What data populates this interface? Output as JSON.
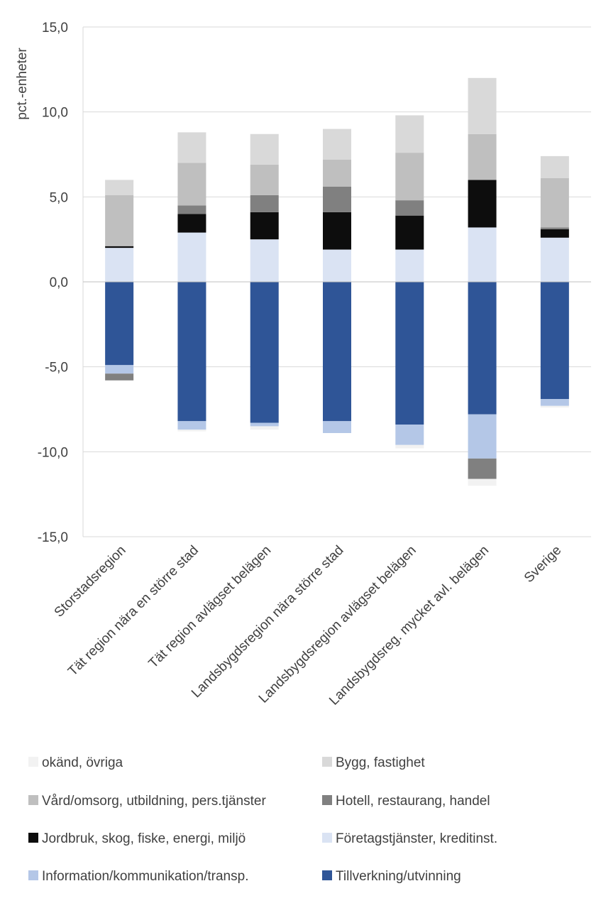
{
  "chart_data": {
    "type": "bar",
    "stacked": true,
    "title": "",
    "ylabel": "pct.-enheter",
    "xlabel": "",
    "ylim": [
      -15,
      15
    ],
    "yticks": [
      "15,0",
      "10,0",
      "5,0",
      "0,0",
      "-5,0",
      "-10,0",
      "-15,0"
    ],
    "ytick_values": [
      15,
      10,
      5,
      0,
      -5,
      -10,
      -15
    ],
    "grid": true,
    "legend_position": "bottom",
    "categories": [
      "Storstadsregion",
      "Tät region nära en större stad",
      "Tät region avlägset belägen",
      "Landsbygdsregion nära större stad",
      "Landsbygdsregion avlägset belägen",
      "Landsbygdsreg. mycket avl. belägen",
      "Sverige"
    ],
    "series": [
      {
        "name": "Tillverkning/utvinning",
        "color": "#2f5597",
        "values": [
          -4.9,
          -8.2,
          -8.3,
          -8.2,
          -8.4,
          -7.8,
          -6.9
        ]
      },
      {
        "name": "Information/kommunikation/transp.",
        "color": "#b4c7e7",
        "values": [
          -0.5,
          -0.5,
          -0.2,
          -0.7,
          -1.2,
          -2.6,
          -0.4
        ]
      },
      {
        "name": "Företagstjänster, kreditinst.",
        "color": "#dae3f3",
        "values": [
          2.0,
          2.9,
          2.5,
          1.9,
          1.9,
          3.2,
          2.6
        ]
      },
      {
        "name": "Jordbruk, skog, fiske, energi, miljö",
        "color": "#0d0d0d",
        "values": [
          0.1,
          1.1,
          1.6,
          2.2,
          2.0,
          2.8,
          0.5
        ]
      },
      {
        "name": "Hotell, restaurang, handel",
        "color": "#808080",
        "values": [
          -0.4,
          0.5,
          1.0,
          1.5,
          0.9,
          -1.2,
          0.1
        ]
      },
      {
        "name": "Vård/omsorg, utbildning, pers.tjänster",
        "color": "#bfbfbf",
        "values": [
          3.0,
          2.5,
          1.8,
          1.6,
          2.8,
          2.7,
          2.9
        ]
      },
      {
        "name": "Bygg, fastighet",
        "color": "#d9d9d9",
        "values": [
          0.9,
          1.8,
          1.8,
          1.8,
          2.2,
          3.3,
          1.3
        ]
      },
      {
        "name": "okänd, övriga",
        "color": "#f2f2f2",
        "values": [
          0.0,
          -0.1,
          -0.2,
          0.0,
          -0.2,
          -0.4,
          -0.1
        ]
      }
    ],
    "legend_order": [
      "okänd, övriga",
      "Bygg, fastighet",
      "Vård/omsorg, utbildning, pers.tjänster",
      "Hotell, restaurang, handel",
      "Jordbruk, skog, fiske, energi, miljö",
      "Företagstjänster, kreditinst.",
      "Information/kommunikation/transp.",
      "Tillverkning/utvinning"
    ]
  }
}
